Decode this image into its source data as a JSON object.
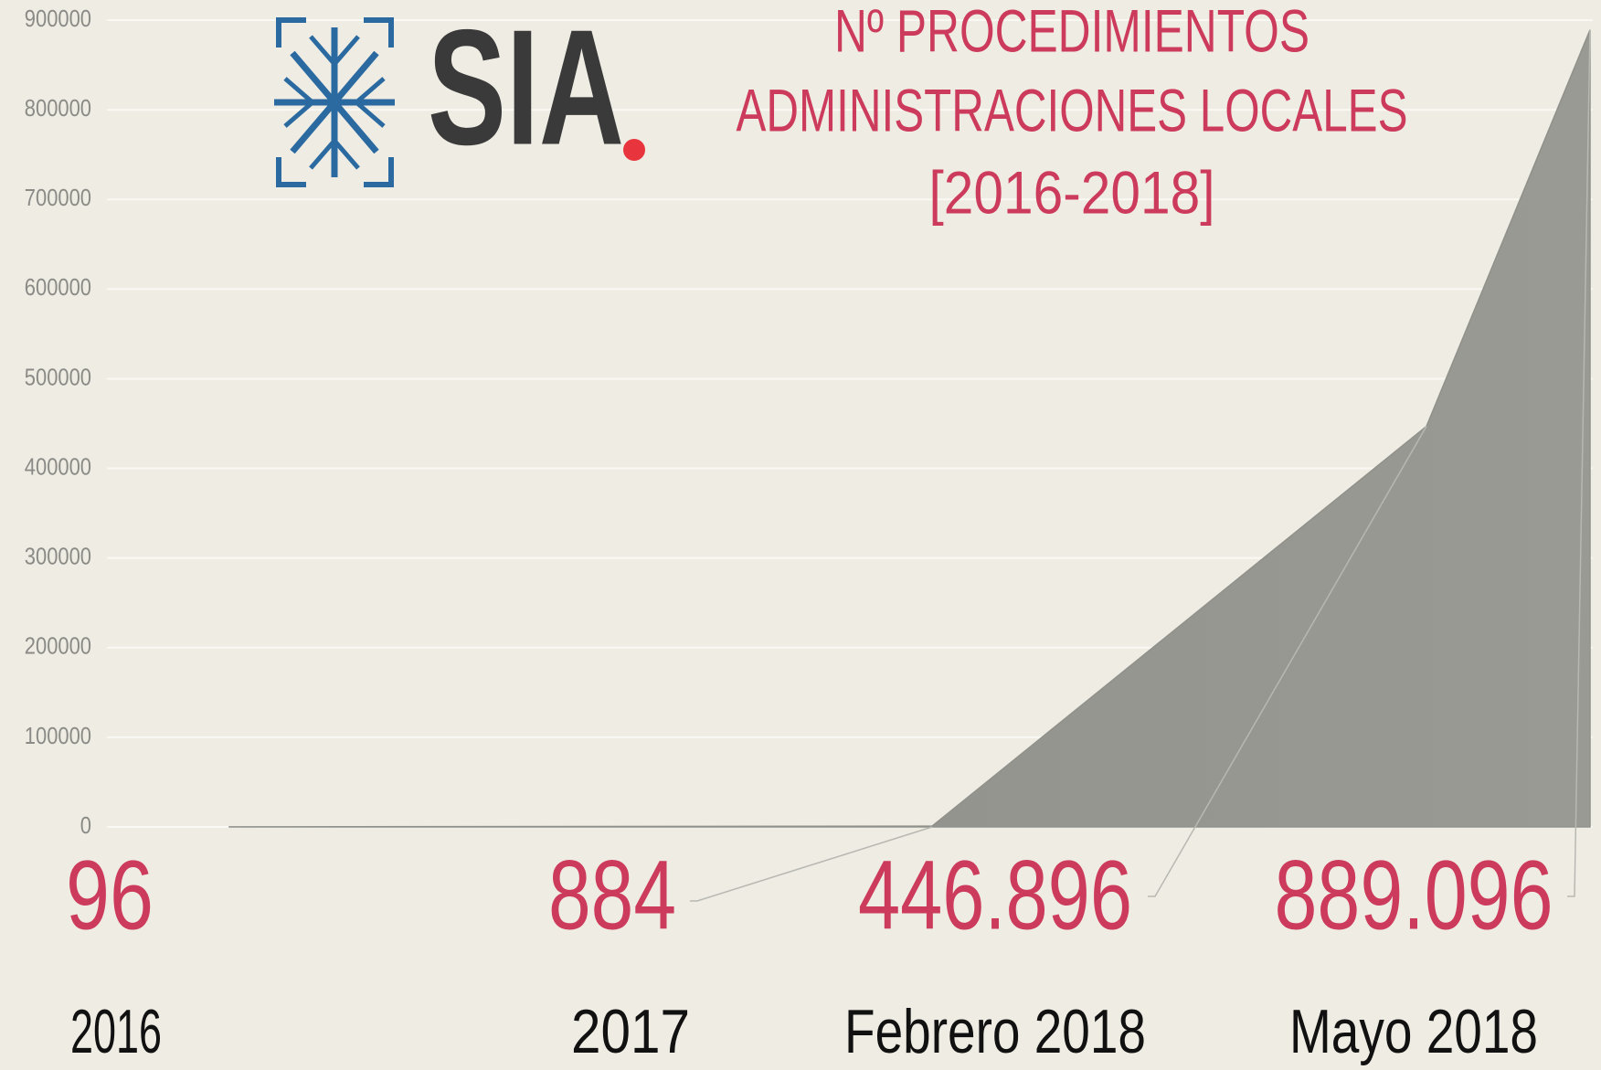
{
  "chart_data": {
    "type": "area",
    "title": [
      "Nº PROCEDIMIENTOS",
      "ADMINISTRACIONES LOCALES",
      "[2016-2018]"
    ],
    "logo": "SIA",
    "categories": [
      "2016",
      "2017",
      "Febrero 2018",
      "Mayo 2018"
    ],
    "values": [
      96,
      884,
      446896,
      889096
    ],
    "value_labels": [
      "96",
      "884",
      "446.896",
      "889.096"
    ],
    "color": "#91918b",
    "label_color": "#cc3b5c",
    "ylim": [
      0,
      900000
    ],
    "yticks": [
      0,
      100000,
      200000,
      300000,
      400000,
      500000,
      600000,
      700000,
      800000,
      900000
    ],
    "grid": true
  }
}
